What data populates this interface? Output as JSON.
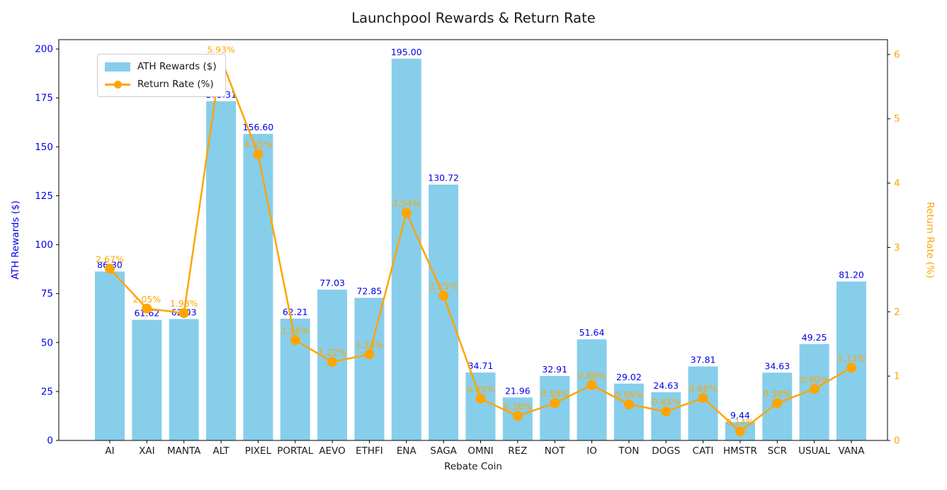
{
  "figure": {
    "title": "Launchpool Rewards & Return Rate"
  },
  "chart_data": {
    "type": "combo-bar-line",
    "title": "Launchpool Rewards & Return Rate",
    "xlabel": "Rebate Coin",
    "categories": [
      "AI",
      "XAI",
      "MANTA",
      "ALT",
      "PIXEL",
      "PORTAL",
      "AEVO",
      "ETHFI",
      "ENA",
      "SAGA",
      "OMNI",
      "REZ",
      "NOT",
      "IO",
      "TON",
      "DOGS",
      "CATI",
      "HMSTR",
      "SCR",
      "USUAL",
      "VANA"
    ],
    "series": [
      {
        "name": "ATH Rewards ($)",
        "type": "bar",
        "axis": "left",
        "color": "#87CEEB",
        "label_color": "#0000EE",
        "values": [
          86.3,
          61.62,
          62.03,
          173.31,
          156.6,
          62.21,
          77.03,
          72.85,
          195.0,
          130.72,
          34.71,
          21.96,
          32.91,
          51.64,
          29.02,
          24.63,
          37.81,
          9.44,
          34.63,
          49.25,
          81.2
        ]
      },
      {
        "name": "Return Rate (%)",
        "type": "line",
        "axis": "right",
        "color": "#FFA500",
        "label_color": "#FFA500",
        "values": [
          2.67,
          2.05,
          1.98,
          5.93,
          4.45,
          1.56,
          1.22,
          1.34,
          3.54,
          2.25,
          0.65,
          0.38,
          0.58,
          0.86,
          0.56,
          0.45,
          0.66,
          0.14,
          0.58,
          0.8,
          1.13
        ]
      }
    ],
    "axes": {
      "left": {
        "label": "ATH Rewards ($)",
        "color": "#0000EE",
        "ticks": [
          0,
          25,
          50,
          75,
          100,
          125,
          150,
          175,
          200
        ],
        "lim": [
          0,
          204.75
        ]
      },
      "right": {
        "label": "Return Rate (%)",
        "color": "#FFA500",
        "ticks": [
          0,
          1,
          2,
          3,
          4,
          5,
          6
        ],
        "lim": [
          0,
          6.23
        ]
      },
      "frame_color": "#000000",
      "grid": false
    },
    "legend": {
      "position": "upper-left",
      "items": [
        "ATH Rewards ($)",
        "Return Rate (%)"
      ]
    }
  }
}
